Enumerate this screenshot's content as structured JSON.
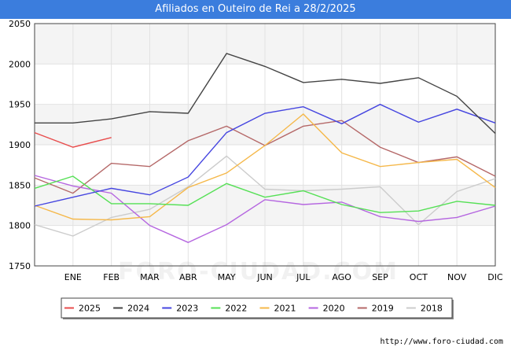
{
  "title": "Afiliados en Outeiro de Rei a 28/2/2025",
  "source_url": "http://www.foro-ciudad.com",
  "watermark": "FORO-CIUDAD.COM",
  "chart_data": {
    "type": "line",
    "title": "Afiliados en Outeiro de Rei a 28/2/2025",
    "xlabel": "",
    "ylabel": "",
    "categories": [
      "",
      "ENE",
      "FEB",
      "MAR",
      "ABR",
      "MAY",
      "JUN",
      "JUL",
      "AGO",
      "SEP",
      "OCT",
      "NOV",
      "DIC"
    ],
    "ylim": [
      1750,
      2050
    ],
    "yticks": [
      1750,
      1800,
      1850,
      1900,
      1950,
      2000,
      2050
    ],
    "grid": true,
    "legend_position": "bottom",
    "series": [
      {
        "name": "2025",
        "color": "#e84c4c",
        "values": [
          1915,
          1897,
          1909,
          null,
          null,
          null,
          null,
          null,
          null,
          null,
          null,
          null,
          null
        ]
      },
      {
        "name": "2024",
        "color": "#444444",
        "values": [
          1927,
          1927,
          1932,
          1941,
          1939,
          2013,
          1997,
          1977,
          1981,
          1976,
          1983,
          1960,
          1914
        ]
      },
      {
        "name": "2023",
        "color": "#4545e0",
        "values": [
          1824,
          1835,
          1846,
          1838,
          1860,
          1915,
          1939,
          1947,
          1926,
          1950,
          1928,
          1944,
          1927
        ]
      },
      {
        "name": "2022",
        "color": "#55e055",
        "values": [
          1846,
          1861,
          1827,
          1827,
          1825,
          1852,
          1835,
          1843,
          1826,
          1816,
          1818,
          1830,
          1825
        ]
      },
      {
        "name": "2021",
        "color": "#f5b84a",
        "values": [
          1825,
          1808,
          1807,
          1811,
          1847,
          1865,
          1899,
          1938,
          1890,
          1873,
          1878,
          1882,
          1847
        ]
      },
      {
        "name": "2020",
        "color": "#b566e0",
        "values": [
          1862,
          1849,
          1840,
          1800,
          1779,
          1801,
          1832,
          1826,
          1829,
          1811,
          1805,
          1810,
          1824
        ]
      },
      {
        "name": "2019",
        "color": "#b56868",
        "values": [
          1859,
          1840,
          1877,
          1873,
          1905,
          1923,
          1899,
          1923,
          1930,
          1897,
          1878,
          1885,
          1861
        ]
      },
      {
        "name": "2018",
        "color": "#cccccc",
        "values": [
          1801,
          1787,
          1810,
          1820,
          1848,
          1886,
          1845,
          1843,
          1845,
          1848,
          1801,
          1842,
          1858
        ]
      }
    ]
  }
}
